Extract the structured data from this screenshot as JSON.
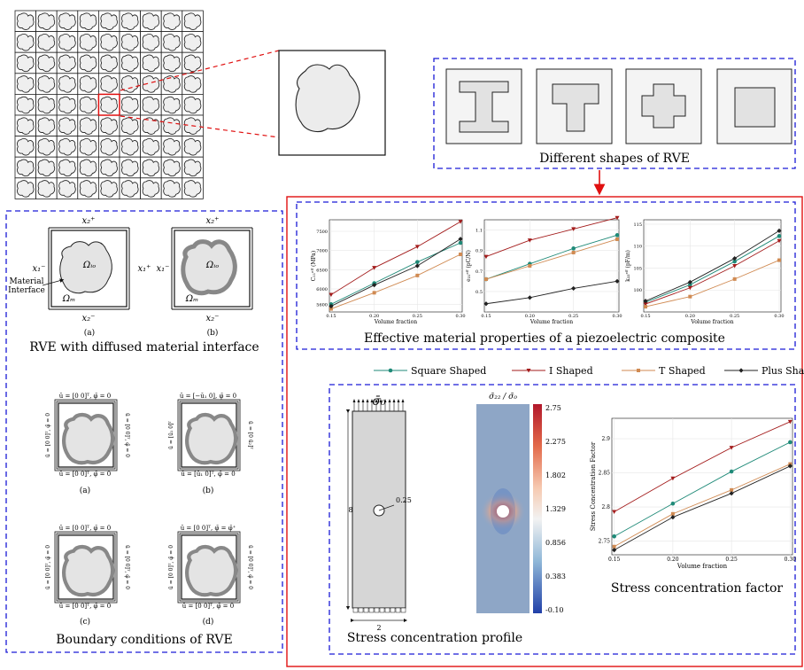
{
  "captions": {
    "shapes": "Different shapes of RVE",
    "rve_interface": "RVE with diffused material interface",
    "boundary": "Boundary conditions of RVE",
    "effective": "Effective material properties of a piezoelectric composite",
    "stress_profile": "Stress concentration profile",
    "scf": "Stress concentration factor"
  },
  "rve_labels": {
    "x2_plus": "x₂⁺",
    "x2_minus": "x₂⁻",
    "x1_plus": "x₁⁺",
    "x1_minus": "x₁⁻",
    "omega_io": "Ωᵢₒ",
    "omega_m": "Ωₘ",
    "material": "Material",
    "interface": "Interface",
    "sub_a": "(a)",
    "sub_b": "(b)",
    "sub_c": "(c)",
    "sub_d": "(d)"
  },
  "bc_labels": {
    "a_top": "ū = [0  0]ᵀ,  φ̄ = 0",
    "b_top": "ū = [−ū₁  0],  φ̄ = 0",
    "b_bottom": "ū = [ū₁  0]ᵀ,  φ̄ = 0",
    "c_top": "ū = [0  0]ᵀ,  φ̄ = 0",
    "d_top": "ū = [0  0]ᵀ,  φ̄ = φ̄⁺",
    "bottom": "ū = [0  0]ᵀ,  φ̄ = 0"
  },
  "legend": [
    "Square Shaped",
    "I Shaped",
    "T Shaped",
    "Plus Shaped"
  ],
  "colors": {
    "square": "#1f8a78",
    "i": "#a31b1b",
    "t": "#d08a52",
    "plus": "#222222",
    "blue_dash": "#1a1ad6",
    "red": "#e01010"
  },
  "plate": {
    "load": "σ̄₀",
    "hole": "0.25",
    "height": "8",
    "width": "2"
  },
  "colorbar": {
    "title": "σ̃₂₂ / σ̃₀",
    "ticks": [
      "2.75",
      "2.275",
      "1.802",
      "1.329",
      "0.856",
      "0.383",
      "-0.10"
    ]
  },
  "chart_data": [
    {
      "type": "line",
      "ylabel": "C₁₁ᵉᶠᶠ (MPa)",
      "xlabel": "Volume fraction",
      "x": [
        0.15,
        0.2,
        0.25,
        0.3
      ],
      "xticks": [
        "0.15",
        "0.20",
        "0.25",
        "0.30"
      ],
      "ylim": [
        5400,
        7800
      ],
      "yticks": [
        5600,
        6000,
        6500,
        7000,
        7500
      ],
      "series": [
        {
          "name": "Square Shaped",
          "values": [
            5600,
            6150,
            6700,
            7200
          ]
        },
        {
          "name": "I Shaped",
          "values": [
            5850,
            6550,
            7100,
            7750
          ]
        },
        {
          "name": "T Shaped",
          "values": [
            5480,
            5900,
            6350,
            6900
          ]
        },
        {
          "name": "Plus Shaped",
          "values": [
            5550,
            6100,
            6600,
            7300
          ]
        }
      ]
    },
    {
      "type": "line",
      "ylabel": "e₃₁ᵉᶠᶠ (pC/N)",
      "xlabel": "Volume fraction",
      "x": [
        0.15,
        0.2,
        0.25,
        0.3
      ],
      "xticks": [
        "0.15",
        "0.20",
        "0.25",
        "0.30"
      ],
      "ylim": [
        0.3,
        1.2
      ],
      "yticks": [
        0.5,
        0.7,
        0.9,
        1.1
      ],
      "series": [
        {
          "name": "Square Shaped",
          "values": [
            0.62,
            0.77,
            0.92,
            1.05
          ]
        },
        {
          "name": "I Shaped",
          "values": [
            0.84,
            1.0,
            1.11,
            1.22
          ]
        },
        {
          "name": "T Shaped",
          "values": [
            0.62,
            0.75,
            0.88,
            1.01
          ]
        },
        {
          "name": "Plus Shaped",
          "values": [
            0.38,
            0.44,
            0.53,
            0.6
          ]
        }
      ]
    },
    {
      "type": "line",
      "ylabel": "k₃₃ᵉᶠᶠ (pF/m)",
      "xlabel": "Volume fraction",
      "x": [
        0.15,
        0.2,
        0.25,
        0.3
      ],
      "xticks": [
        "0.15",
        "0.20",
        "0.25",
        "0.30"
      ],
      "ylim": [
        95,
        116
      ],
      "yticks": [
        100,
        105,
        110,
        115
      ],
      "series": [
        {
          "name": "Square Shaped",
          "values": [
            97.2,
            101.2,
            106.5,
            112.3
          ]
        },
        {
          "name": "I Shaped",
          "values": [
            96.8,
            100.5,
            105.5,
            111.2
          ]
        },
        {
          "name": "T Shaped",
          "values": [
            96.2,
            98.5,
            102.5,
            106.8
          ]
        },
        {
          "name": "Plus Shaped",
          "values": [
            97.5,
            101.8,
            107.2,
            113.5
          ]
        }
      ]
    },
    {
      "type": "line",
      "ylabel": "Stress Concentration Factor",
      "xlabel": "Volume fraction",
      "x": [
        0.15,
        0.2,
        0.25,
        0.3
      ],
      "xticks": [
        "0.15",
        "0.20",
        "0.25",
        "0.30"
      ],
      "ylim": [
        2.73,
        2.93
      ],
      "yticks": [
        2.75,
        2.8,
        2.85,
        2.9
      ],
      "series": [
        {
          "name": "Square Shaped",
          "values": [
            2.757,
            2.805,
            2.852,
            2.895
          ]
        },
        {
          "name": "I Shaped",
          "values": [
            2.793,
            2.842,
            2.887,
            2.925
          ]
        },
        {
          "name": "T Shaped",
          "values": [
            2.742,
            2.79,
            2.825,
            2.863
          ]
        },
        {
          "name": "Plus Shaped",
          "values": [
            2.737,
            2.785,
            2.82,
            2.86
          ]
        }
      ]
    }
  ]
}
